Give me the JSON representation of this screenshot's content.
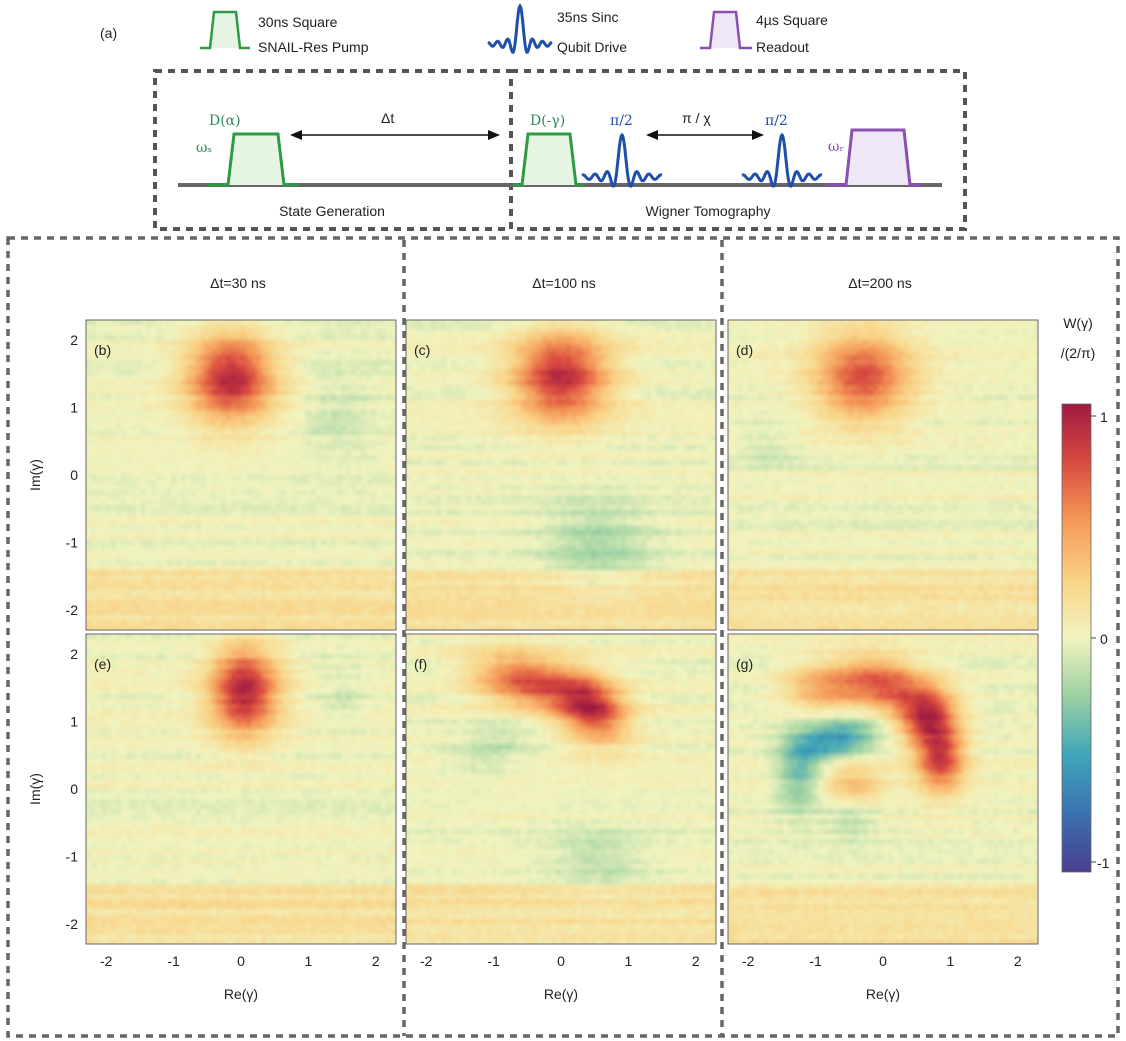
{
  "panel_a": {
    "label": "(a)",
    "legend": [
      {
        "line1": "30ns Square",
        "line2": "SNAIL-Res Pump",
        "color": "#2e9a44"
      },
      {
        "line1": "35ns Sinc",
        "line2": "Qubit Drive",
        "color": "#1f4fa8"
      },
      {
        "line1": "4µs Square",
        "line2": "Readout",
        "color": "#8a4fb0"
      }
    ],
    "pulse_labels": {
      "displace_alpha": "D(α)",
      "omega_s": "ωₛ",
      "delta_t": "Δt",
      "displace_minus_gamma": "D(-γ)",
      "pi_half_1": "π/2",
      "pi_over_chi": "π / χ",
      "pi_half_2": "π/2",
      "omega_r": "ωᵣ"
    },
    "section_labels": {
      "left": "State Generation",
      "right": "Wigner Tomography"
    }
  },
  "colors": {
    "pump": "#2e9a44",
    "qubit": "#1f4fa8",
    "readout": "#8a4fb0",
    "label_green": "#2e8b57",
    "label_blue": "#1f4fa8"
  },
  "chart_data": {
    "type": "heatmap",
    "colormap": "RdYlBu_r",
    "xlabel": "Re(γ)",
    "ylabel": "Im(γ)",
    "xlim": [
      -2.3,
      2.3
    ],
    "ylim": [
      -2.3,
      2.3
    ],
    "xticks": [
      -2,
      -1,
      0,
      1,
      2
    ],
    "yticks": [
      -2,
      -1,
      0,
      1,
      2
    ],
    "column_titles": [
      "Δt=30 ns",
      "Δt=100 ns",
      "Δt=200 ns"
    ],
    "colorbar": {
      "label_line1": "W(γ)",
      "label_line2": "/(2/π)",
      "min": -1,
      "max": 1,
      "ticks": [
        1,
        0,
        -1
      ]
    },
    "panels": [
      {
        "label": "(b)",
        "row": 0,
        "col": 0,
        "features": [
          {
            "x": -0.15,
            "y": 1.45,
            "sx": 0.45,
            "sy": 0.45,
            "amp": 0.9,
            "theta": 0
          },
          {
            "x": 1.45,
            "y": 0.85,
            "sx": 0.4,
            "sy": 0.5,
            "amp": -0.12,
            "theta": 0
          }
        ]
      },
      {
        "label": "(c)",
        "row": 0,
        "col": 1,
        "features": [
          {
            "x": 0.0,
            "y": 1.45,
            "sx": 0.5,
            "sy": 0.45,
            "amp": 0.88,
            "theta": 0
          },
          {
            "x": 0.55,
            "y": -1.05,
            "sx": 0.55,
            "sy": 0.45,
            "amp": -0.22,
            "theta": 0
          }
        ]
      },
      {
        "label": "(d)",
        "row": 0,
        "col": 2,
        "features": [
          {
            "x": -0.3,
            "y": 1.45,
            "sx": 0.5,
            "sy": 0.45,
            "amp": 0.72,
            "theta": 0
          },
          {
            "x": -1.7,
            "y": 0.4,
            "sx": 0.3,
            "sy": 0.3,
            "amp": -0.08,
            "theta": 0
          }
        ]
      },
      {
        "label": "(e)",
        "row": 1,
        "col": 0,
        "features": [
          {
            "x": 0.05,
            "y": 1.45,
            "sx": 0.35,
            "sy": 0.45,
            "amp": 0.92,
            "theta": 0
          },
          {
            "x": 1.5,
            "y": 1.4,
            "sx": 0.3,
            "sy": 0.35,
            "amp": -0.1,
            "theta": 0
          }
        ]
      },
      {
        "label": "(f)",
        "row": 1,
        "col": 1,
        "features": [
          {
            "x": -0.5,
            "y": 1.6,
            "sx": 0.55,
            "sy": 0.28,
            "amp": 0.7,
            "theta": -0.2
          },
          {
            "x": 0.45,
            "y": 1.2,
            "sx": 0.4,
            "sy": 0.3,
            "amp": 0.85,
            "theta": -0.6
          },
          {
            "x": -1.0,
            "y": 0.6,
            "sx": 0.5,
            "sy": 0.25,
            "amp": -0.15,
            "theta": 0.3
          },
          {
            "x": 0.55,
            "y": -1.05,
            "sx": 0.5,
            "sy": 0.35,
            "amp": -0.15,
            "theta": 0
          }
        ]
      },
      {
        "label": "(g)",
        "row": 1,
        "col": 2,
        "features": [
          {
            "x": -0.9,
            "y": 1.5,
            "sx": 0.4,
            "sy": 0.25,
            "amp": 0.45,
            "theta": 0
          },
          {
            "x": 0.0,
            "y": 1.55,
            "sx": 0.45,
            "sy": 0.28,
            "amp": 0.68,
            "theta": -0.2
          },
          {
            "x": 0.65,
            "y": 1.1,
            "sx": 0.3,
            "sy": 0.3,
            "amp": 0.8,
            "theta": -0.8
          },
          {
            "x": 0.85,
            "y": 0.45,
            "sx": 0.25,
            "sy": 0.35,
            "amp": 0.78,
            "theta": 0
          },
          {
            "x": -0.7,
            "y": 0.75,
            "sx": 0.45,
            "sy": 0.22,
            "amp": -0.55,
            "theta": 0.2
          },
          {
            "x": -1.25,
            "y": 0.2,
            "sx": 0.22,
            "sy": 0.4,
            "amp": -0.35,
            "theta": 0
          },
          {
            "x": -0.45,
            "y": 0.05,
            "sx": 0.3,
            "sy": 0.25,
            "amp": 0.35,
            "theta": 0
          },
          {
            "x": -0.5,
            "y": -0.4,
            "sx": 0.25,
            "sy": 0.25,
            "amp": -0.2,
            "theta": 0
          }
        ]
      }
    ]
  }
}
